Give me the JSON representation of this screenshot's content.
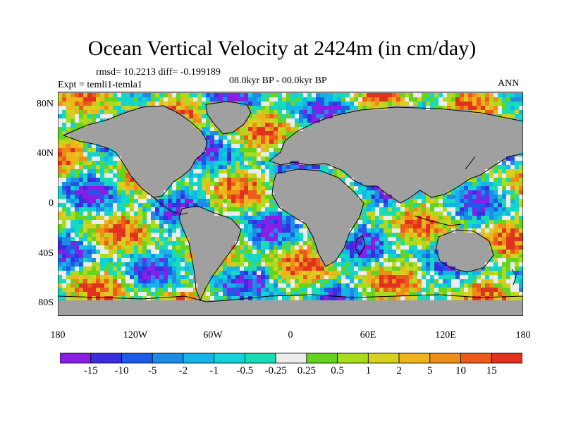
{
  "title": "Ocean Vertical Velocity at 2424m (in cm/day)",
  "stats": "rmsd= 10.2213 diff= -0.199189",
  "experiment": "Expt = temli1-temla1",
  "period": "08.0kyr BP - 00.0kyr BP",
  "season": "ANN",
  "map": {
    "lat_ticks": [
      {
        "label": "80N",
        "lat": 80
      },
      {
        "label": "40N",
        "lat": 40
      },
      {
        "label": "0",
        "lat": 0
      },
      {
        "label": "40S",
        "lat": -40
      },
      {
        "label": "80S",
        "lat": -80
      }
    ],
    "lon_ticks": [
      {
        "label": "180",
        "lon": -180
      },
      {
        "label": "120W",
        "lon": -120
      },
      {
        "label": "60W",
        "lon": -60
      },
      {
        "label": "0",
        "lon": 0
      },
      {
        "label": "60E",
        "lon": 60
      },
      {
        "label": "120E",
        "lon": 120
      },
      {
        "label": "180",
        "lon": 180
      }
    ],
    "lat_range": [
      -90,
      90
    ],
    "lon_range": [
      -180,
      180
    ],
    "land_color": "#a0a0a0"
  },
  "colorbar": {
    "levels": [
      "-15",
      "-10",
      "-5",
      "-2",
      "-1",
      "-0.5",
      "-0.25",
      "0.25",
      "0.5",
      "1",
      "2",
      "5",
      "10",
      "15"
    ],
    "colors": [
      "#8a1ee6",
      "#3a2ee0",
      "#1c5ae8",
      "#1e8ce6",
      "#14b4e8",
      "#12d2d8",
      "#18dcb4",
      "#ececec",
      "#64d41e",
      "#aadc1e",
      "#d8d020",
      "#eeb41e",
      "#ee8c18",
      "#ec5a1c",
      "#e0321e"
    ]
  }
}
